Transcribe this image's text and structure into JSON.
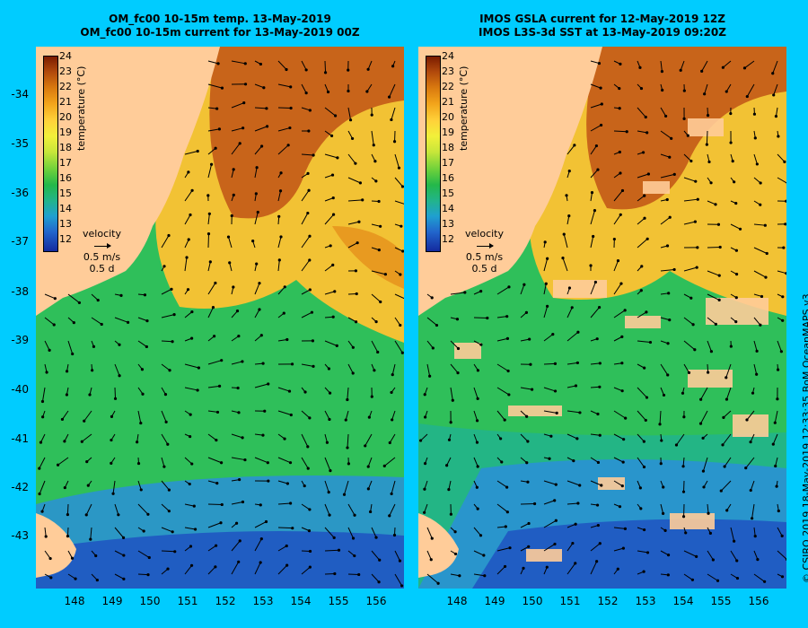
{
  "left_panel": {
    "title_line1": "OM_fc00 10-15m temp. 13-May-2019",
    "title_line2": "OM_fc00 10-15m current for 13-May-2019 00Z"
  },
  "right_panel": {
    "title_line1": "IMOS GSLA current for 12-May-2019 12Z",
    "title_line2": "IMOS L3S-3d SST at 13-May-2019 09:20Z"
  },
  "colorbar": {
    "label": "temperature (°C)",
    "ticks": [
      "24",
      "23",
      "22",
      "21",
      "20",
      "19",
      "18",
      "17",
      "16",
      "15",
      "14",
      "13",
      "12"
    ],
    "colors": [
      "#7a1c00",
      "#b24a0c",
      "#d9790f",
      "#f2a31a",
      "#ffd23a",
      "#f2f03a",
      "#c8e63a",
      "#6ed13b",
      "#24b84a",
      "#22b48a",
      "#1fa0d0",
      "#2266cc",
      "#142a9e"
    ]
  },
  "velocity_legend": {
    "title": "velocity",
    "speed": "0.5 m/s",
    "duration": "0.5 d"
  },
  "axes": {
    "lat_ticks": [
      "-34",
      "-35",
      "-36",
      "-37",
      "-38",
      "-39",
      "-40",
      "-41",
      "-42",
      "-43"
    ],
    "lon_ticks": [
      "148",
      "149",
      "150",
      "151",
      "152",
      "153",
      "154",
      "155",
      "156"
    ]
  },
  "side_label": "© CSIRO 2019   18-May-2019 12:33:35 BoM OceanMAPS v3",
  "colors": {
    "background": "#00ccff",
    "land": "#ffcc99",
    "warm": "#c8641a",
    "mid": "#f2c234",
    "cool": "#2fbf5a",
    "cold": "#2a8fd8"
  }
}
